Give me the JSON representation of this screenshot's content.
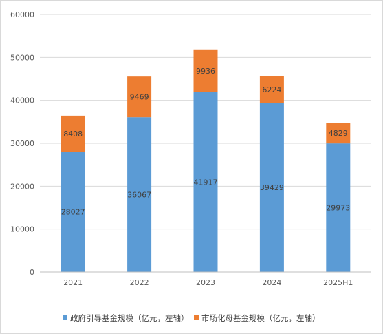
{
  "chart_data": {
    "type": "bar",
    "stacked": true,
    "categories": [
      "2021",
      "2022",
      "2023",
      "2024",
      "2025H1"
    ],
    "series": [
      {
        "name": "政府引导基金规模（亿元，左轴）",
        "color": "#5B9BD5",
        "values": [
          28027,
          36067,
          41917,
          39429,
          29973
        ]
      },
      {
        "name": "市场化母基金规模（亿元，左轴）",
        "color": "#ED7D31",
        "values": [
          8408,
          9469,
          9936,
          6224,
          4829
        ]
      }
    ],
    "ylim": [
      0,
      60000
    ],
    "yticks": [
      "0",
      "10000",
      "20000",
      "30000",
      "40000",
      "50000",
      "60000"
    ],
    "grid": true,
    "legend": "bottom"
  }
}
